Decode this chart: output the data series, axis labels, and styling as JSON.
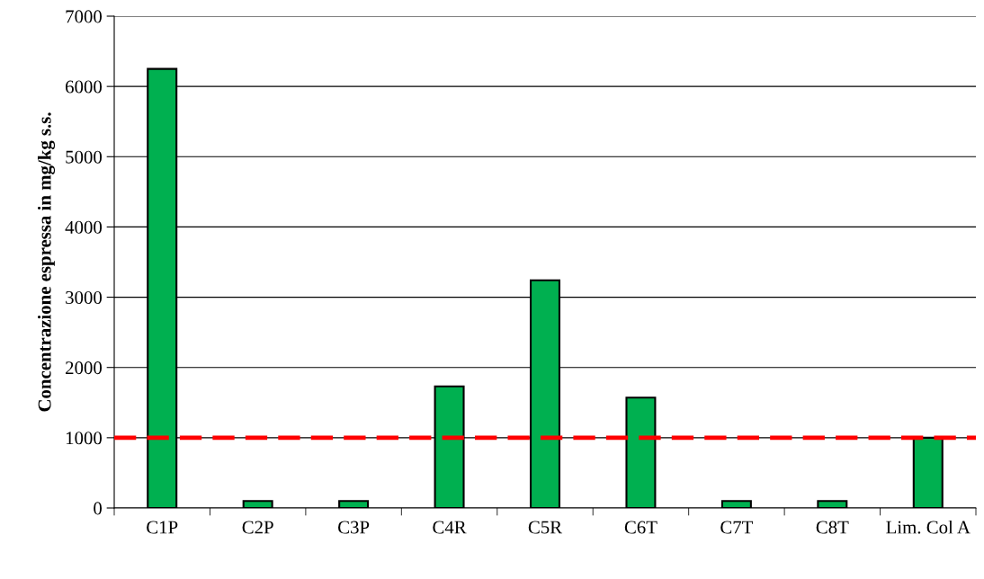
{
  "chart_data": {
    "type": "bar",
    "ylabel": "Concentrazione espressa in mg/kg s.s.",
    "categories": [
      "C1P",
      "C2P",
      "C3P",
      "C4R",
      "C5R",
      "C6T",
      "C7T",
      "C8T",
      "Lim. Col A"
    ],
    "values": [
      6250,
      100,
      100,
      1730,
      3240,
      1570,
      100,
      100,
      1000
    ],
    "color": "#00b050",
    "ylim": [
      0,
      7000
    ],
    "yticks": [
      0,
      1000,
      2000,
      3000,
      4000,
      5000,
      6000,
      7000
    ],
    "grid": "y",
    "ref_lines": [
      {
        "axis": "y",
        "value": 1000,
        "color": "#ff0000",
        "line_style": "dashed"
      }
    ]
  }
}
